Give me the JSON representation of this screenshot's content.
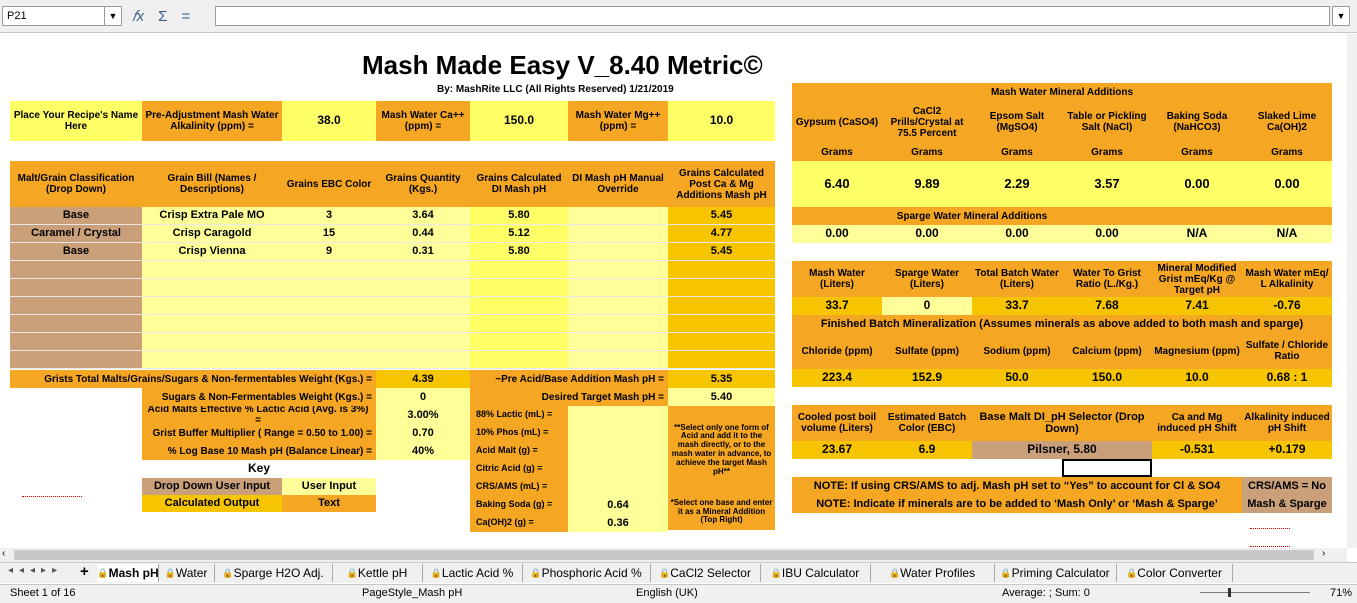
{
  "namebox": "P21",
  "title": "Mash Made Easy V_8.40 Metric©",
  "byline": "By: MashRite LLC (All Rights Reserved) 1/21/2019",
  "top": {
    "recipe": "Place Your Recipe's Name Here",
    "alk_label": "Pre-Adjustment Mash Water Alkalinity (ppm) =",
    "alk_val": "38.0",
    "ca_label": "Mash Water Ca++ (ppm) =",
    "ca_val": "150.0",
    "mg_label": "Mash Water Mg++ (ppm) =",
    "mg_val": "10.0"
  },
  "grain_headers": [
    "Malt/Grain Classification (Drop Down)",
    "Grain Bill (Names / Descriptions)",
    "Grains EBC Color",
    "Grains Quantity (Kgs.)",
    "Grains Calculated DI Mash pH",
    "DI Mash pH Manual Override",
    "Grains Calculated Post Ca & Mg Additions Mash pH"
  ],
  "grains": [
    {
      "cls": "Base",
      "name": "Crisp Extra Pale MO",
      "ebc": "3",
      "qty": "3.64",
      "ph": "5.80",
      "post": "5.45"
    },
    {
      "cls": "Caramel / Crystal",
      "name": "Crisp Caragold",
      "ebc": "15",
      "qty": "0.44",
      "ph": "5.12",
      "post": "4.77"
    },
    {
      "cls": "Base",
      "name": "Crisp Vienna",
      "ebc": "9",
      "qty": "0.31",
      "ph": "5.80",
      "post": "5.45"
    }
  ],
  "totals": {
    "grists_label": "Grists Total Malts/Grains/Sugars & Non-fermentables Weight (Kgs.) =",
    "grists_val": "4.39",
    "sugars_label": "Sugars & Non-Fermentables Weight (Kgs.) =",
    "sugars_val": "0",
    "acidmalt_label": "Acid Malts Effective % Lactic Acid (Avg. is 3%) =",
    "acidmalt_val": "3.00%",
    "buffer_label": "Grist Buffer Multiplier ( Range = 0.50 to 1.00) =",
    "buffer_val": "0.70",
    "log_label": "% Log Base 10 Mash pH (Balance Linear) =",
    "log_val": "40%",
    "pre_acid_label": "~Pre Acid/Base Addition Mash pH =",
    "pre_acid_val": "5.35",
    "target_label": "Desired Target Mash pH =",
    "target_val": "5.40"
  },
  "acids": [
    {
      "label": "88%  Lactic (mL) =",
      "val": ""
    },
    {
      "label": "10%  Phos  (mL) =",
      "val": ""
    },
    {
      "label": "Acid Malt (g) =",
      "val": ""
    },
    {
      "label": "Citric Acid (g) =",
      "val": ""
    },
    {
      "label": "CRS/AMS (mL) =",
      "val": ""
    },
    {
      "label": "Baking Soda (g) =",
      "val": "0.64"
    },
    {
      "label": "Ca(OH)2 (g) =",
      "val": "0.36"
    }
  ],
  "acid_note": "**Select only one form of Acid and add it to the mash directly, or to the mash water in advance, to achieve the target Mash pH**",
  "base_note": "*Select one base and enter it as a Mineral Addition (Top Right)",
  "key": {
    "title": "Key",
    "dd": "Drop Down User Input",
    "ui": "User Input",
    "calc": "Calculated Output",
    "text": "Text"
  },
  "minerals": {
    "title": "Mash Water Mineral Additions",
    "headers": [
      "Gypsum (CaSO4)",
      "CaCl2 Prills/Crystal at 75.5 Percent",
      "Epsom Salt (MgSO4)",
      "Table or Pickling Salt (NaCl)",
      "Baking Soda (NaHCO3)",
      "Slaked Lime Ca(OH)2"
    ],
    "unit": "Grams",
    "values": [
      "6.40",
      "9.89",
      "2.29",
      "3.57",
      "0.00",
      "0.00"
    ],
    "sparge_title": "Sparge Water Mineral Additions",
    "sparge_values": [
      "0.00",
      "0.00",
      "0.00",
      "0.00",
      "N/A",
      "N/A"
    ]
  },
  "water": {
    "headers": [
      "Mash Water (Liters)",
      "Sparge Water (Liters)",
      "Total Batch Water (Liters)",
      "Water To Grist Ratio (L./Kg.)",
      "Mineral Modified Grist mEq/Kg @ Target pH",
      "Mash Water mEq/ L Alkalinity"
    ],
    "values": [
      "33.7",
      "0",
      "33.7",
      "7.68",
      "7.41",
      "-0.76"
    ]
  },
  "finished": {
    "title": "Finished Batch Mineralization (Assumes minerals as above added to both mash and sparge)",
    "headers": [
      "Chloride (ppm)",
      "Sulfate (ppm)",
      "Sodium (ppm)",
      "Calcium (ppm)",
      "Magnesium (ppm)",
      "Sulfate / Chloride Ratio"
    ],
    "values": [
      "223.4",
      "152.9",
      "50.0",
      "150.0",
      "10.0",
      "0.68 : 1"
    ]
  },
  "boil": {
    "headers": [
      "Cooled post boil volume (Liters)",
      "Estimated Batch Color (EBC)",
      "Base Malt DI_pH Selector (Drop Down)",
      "Ca and Mg induced pH Shift",
      "Alkalinity induced pH Shift"
    ],
    "values": [
      "23.67",
      "6.9",
      "Pilsner, 5.80",
      "-0.531",
      "+0.179"
    ]
  },
  "notes": {
    "crs": "NOTE: If using CRS/AMS to adj. Mash pH set to “Yes” to account for Cl & SO4",
    "crs_val": "CRS/AMS = No",
    "mash": "NOTE: Indicate if minerals are to be added to ‘Mash Only’ or ‘Mash & Sparge’",
    "mash_val": "Mash & Sparge"
  },
  "tabs": [
    "Mash pH",
    "Water",
    "Sparge H2O Adj.",
    "Kettle pH",
    "Lactic Acid %",
    "Phosphoric Acid %",
    "CaCl2 Selector",
    "IBU Calculator",
    "Water Profiles",
    "Priming Calculator",
    "Color Converter"
  ],
  "status": {
    "sheet": "Sheet 1 of 16",
    "pagestyle": "PageStyle_Mash pH",
    "lang": "English (UK)",
    "avg": "Average: ; Sum: 0",
    "zoom": "71%"
  }
}
